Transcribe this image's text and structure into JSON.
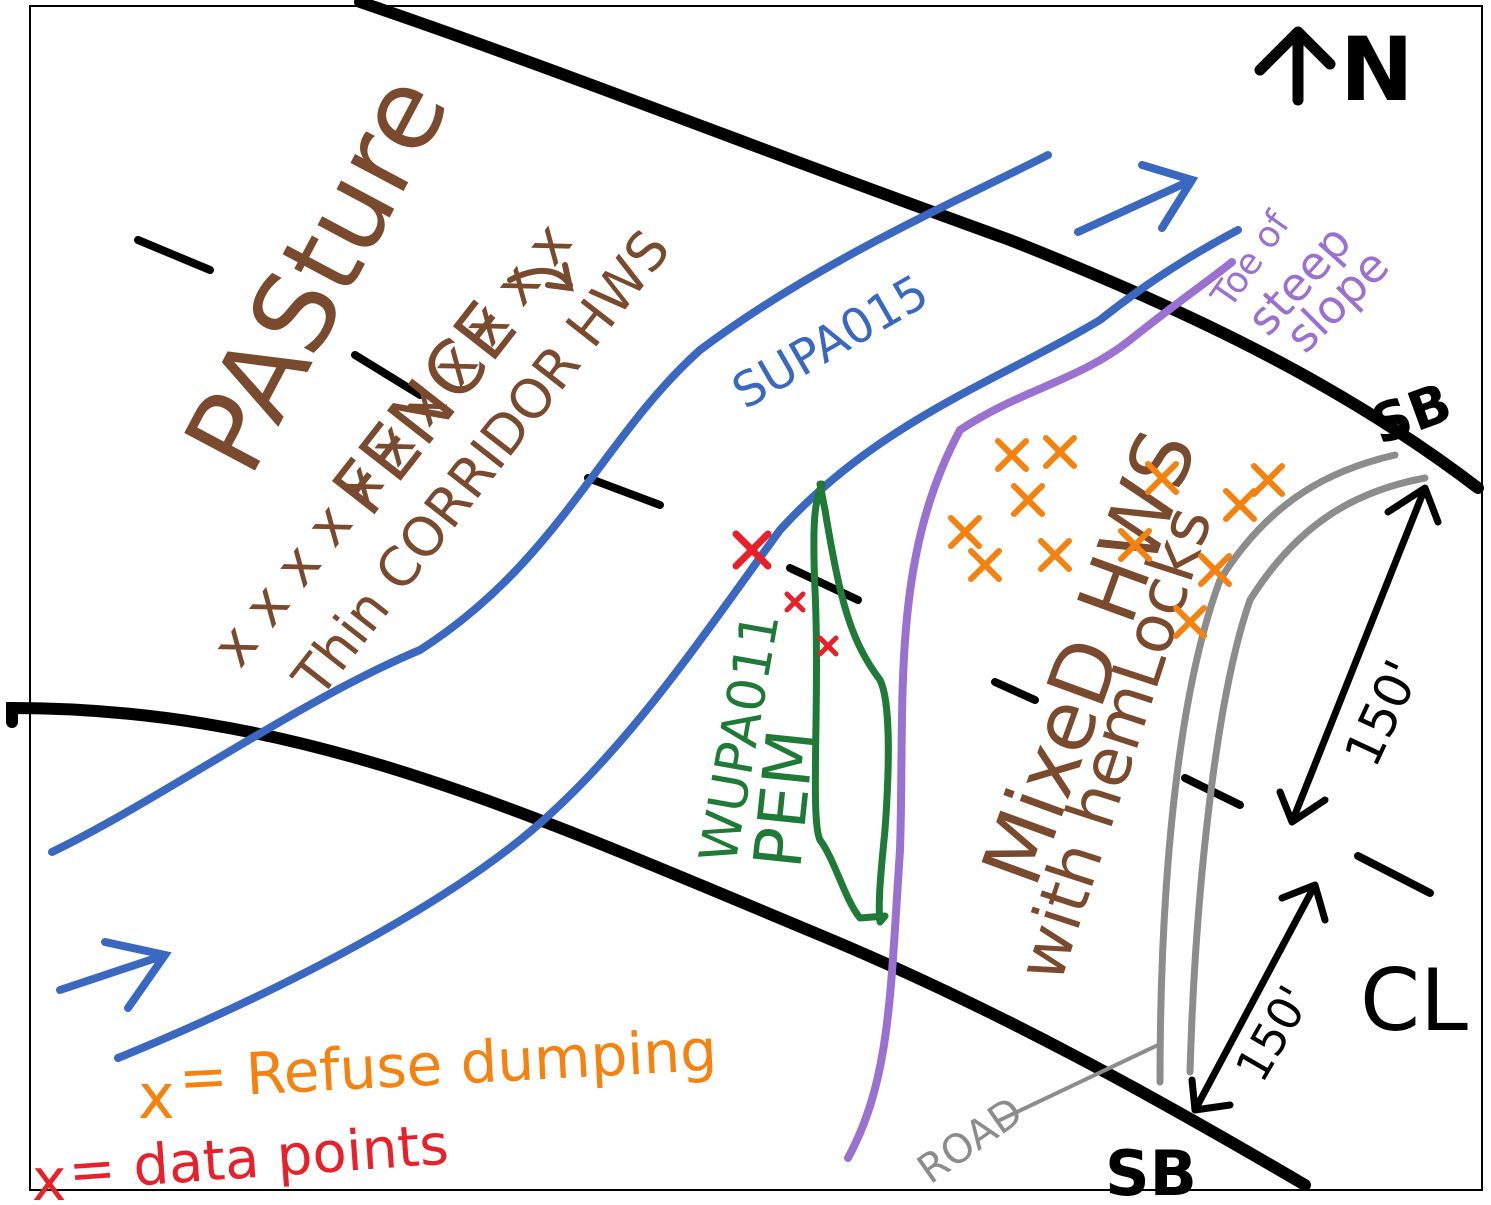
{
  "north": {
    "arrow_icon": "north-arrow-icon",
    "letter": "N"
  },
  "labels": {
    "pasture": "PASture",
    "fence": "FENCE",
    "fence_marks": "x x x x x x x x x x x",
    "thin_corridor": "Thin CORRIDOR HWS",
    "stream_upper": "SUPA015",
    "wetland": "WUPA011",
    "wetland_type": "PEM",
    "mixed_hws": "MixeD HWS",
    "with_hemlocks": "with hemLocks",
    "toe_line1": "Toe of",
    "toe_line2": "steep",
    "toe_line3": "slope",
    "road": "ROAD",
    "sb_top": "SB",
    "sb_bottom": "SB",
    "dim_upper": "150'",
    "dim_lower": "150'",
    "centerline": "CL"
  },
  "legend": {
    "refuse": {
      "symbol": "x",
      "text": "= Refuse dumping"
    },
    "data_points": {
      "symbol": "x",
      "text": "= data points"
    }
  },
  "colors": {
    "boundary": "#000000",
    "stream": "#3a68c0",
    "wetland": "#1e7a36",
    "toe_of_slope": "#9a70d0",
    "road": "#8c8c8c",
    "soil_text": "#7a4a2e",
    "refuse": "#f5820f",
    "data_points": "#e8202a"
  }
}
